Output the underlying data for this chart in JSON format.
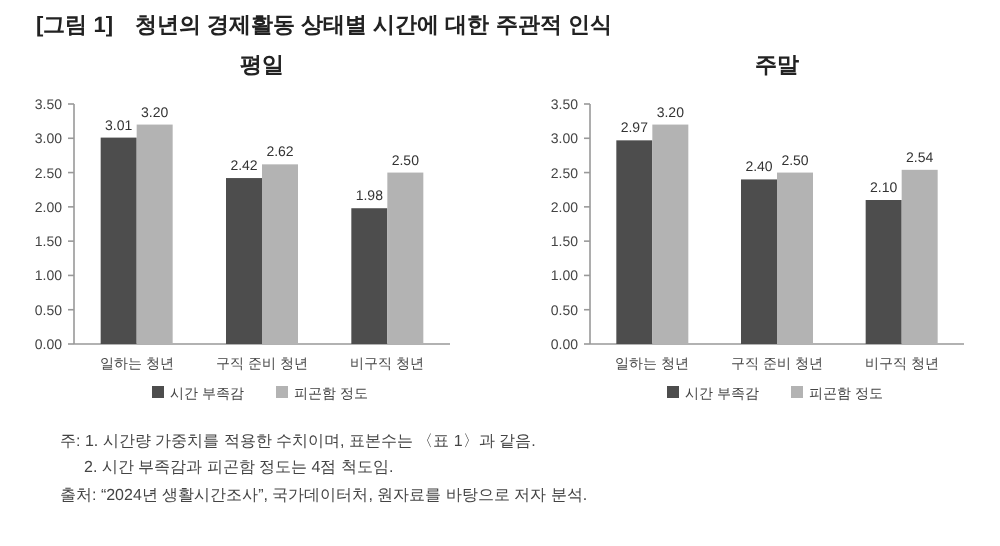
{
  "chart_data": [
    {
      "type": "bar",
      "title": "평일",
      "categories": [
        "일하는 청년",
        "구직 준비 청년",
        "비구직 청년"
      ],
      "series": [
        {
          "name": "시간 부족감",
          "color": "#4d4d4d",
          "values": [
            3.01,
            2.42,
            1.98
          ]
        },
        {
          "name": "피곤함 정도",
          "color": "#b3b3b3",
          "values": [
            3.2,
            2.62,
            2.5
          ]
        }
      ],
      "ylim": [
        0,
        3.5
      ],
      "yticks": [
        {
          "value": 0,
          "label": "0.00"
        },
        {
          "value": 0.5,
          "label": "0.50"
        },
        {
          "value": 1,
          "label": "1.00"
        },
        {
          "value": 1.5,
          "label": "1.50"
        },
        {
          "value": 2,
          "label": "2.00"
        },
        {
          "value": 2.5,
          "label": "2.50"
        },
        {
          "value": 3,
          "label": "3.00"
        },
        {
          "value": 3.5,
          "label": "3.50"
        }
      ],
      "value_labels": [
        [
          "3.01",
          "2.42",
          "1.98"
        ],
        [
          "3.20",
          "2.62",
          "2.50"
        ]
      ],
      "grid": false,
      "legend": "bottom",
      "annotations": [
        "[그림 1]　청년의 경제활동 상태별 시간에 대한 주관적 인식",
        "주: 1. 시간량 가중치를 적용한 수치이며, 표본수는 〈표 1〉과 같음.",
        "2. 시간 부족감과 피곤함 정도는 4점 척도임.",
        "출처: “2024년 생활시간조사”, 국가데이터처, 원자료를 바탕으로 저자 분석."
      ]
    },
    {
      "type": "bar",
      "title": "주말",
      "categories": [
        "일하는 청년",
        "구직 준비 청년",
        "비구직 청년"
      ],
      "series": [
        {
          "name": "시간 부족감",
          "color": "#4d4d4d",
          "values": [
            2.97,
            2.4,
            2.1
          ]
        },
        {
          "name": "피곤함 정도",
          "color": "#b3b3b3",
          "values": [
            3.2,
            2.5,
            2.54
          ]
        }
      ],
      "ylim": [
        0,
        3.5
      ],
      "yticks": [
        {
          "value": 0,
          "label": "0.00"
        },
        {
          "value": 0.5,
          "label": "0.50"
        },
        {
          "value": 1,
          "label": "1.00"
        },
        {
          "value": 1.5,
          "label": "1.50"
        },
        {
          "value": 2,
          "label": "2.00"
        },
        {
          "value": 2.5,
          "label": "2.50"
        },
        {
          "value": 3,
          "label": "3.00"
        },
        {
          "value": 3.5,
          "label": "3.50"
        }
      ],
      "value_labels": [
        [
          "2.97",
          "2.40",
          "2.10"
        ],
        [
          "3.20",
          "2.50",
          "2.54"
        ]
      ],
      "grid": false,
      "legend": "bottom"
    }
  ]
}
